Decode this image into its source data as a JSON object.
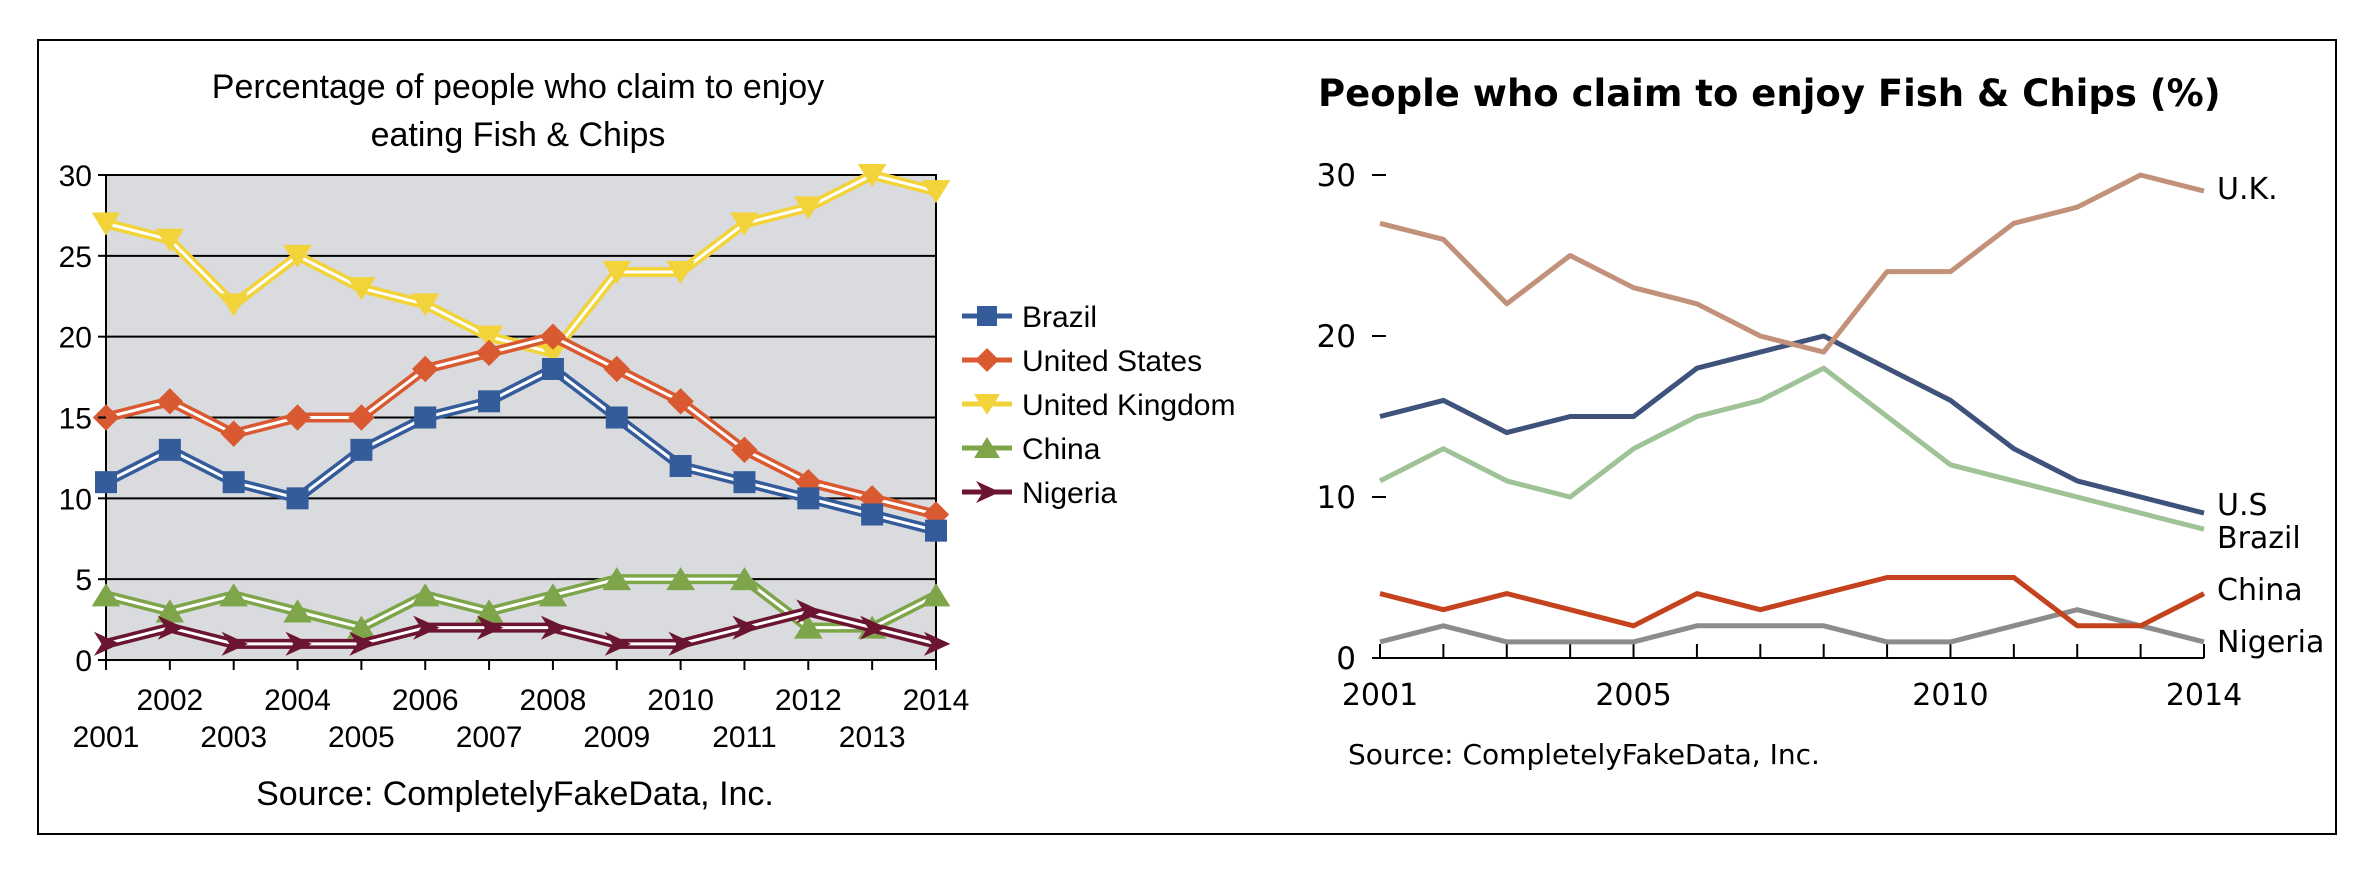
{
  "chart_data": [
    {
      "type": "line",
      "title": "Percentage of people who claim to enjoy eating Fish & Chips",
      "title_lines": [
        "Percentage of people who claim to enjoy",
        "eating Fish & Chips"
      ],
      "source": "Source: CompletelyFakeData, Inc.",
      "x": [
        "2001",
        "2002",
        "2003",
        "2004",
        "2005",
        "2006",
        "2007",
        "2008",
        "2009",
        "2010",
        "2011",
        "2012",
        "2013",
        "2014"
      ],
      "ylim": [
        0,
        30
      ],
      "yticks": [
        "0",
        "5",
        "10",
        "15",
        "20",
        "25",
        "30"
      ],
      "grid": true,
      "legend_position": "right",
      "background": "#d9dbdf",
      "series": [
        {
          "name": "Brazil",
          "color": "#345b9a",
          "marker": "square",
          "values": [
            11,
            13,
            11,
            10,
            13,
            15,
            16,
            18,
            15,
            12,
            11,
            10,
            9,
            8
          ]
        },
        {
          "name": "United States",
          "color": "#d95a31",
          "marker": "diamond",
          "values": [
            15,
            16,
            14,
            15,
            15,
            18,
            19,
            20,
            18,
            16,
            13,
            11,
            10,
            9
          ]
        },
        {
          "name": "United Kingdom",
          "color": "#f2d33a",
          "marker": "triangle-down",
          "values": [
            27,
            26,
            22,
            25,
            23,
            22,
            20,
            19,
            24,
            24,
            27,
            28,
            30,
            29
          ]
        },
        {
          "name": "China",
          "color": "#7ea54a",
          "marker": "triangle-up",
          "values": [
            4,
            3,
            4,
            3,
            2,
            4,
            3,
            4,
            5,
            5,
            5,
            2,
            2,
            4
          ]
        },
        {
          "name": "Nigeria",
          "color": "#6b1530",
          "marker": "arrow-right",
          "values": [
            1,
            2,
            1,
            1,
            1,
            2,
            2,
            2,
            1,
            1,
            2,
            3,
            2,
            1
          ]
        }
      ]
    },
    {
      "type": "line",
      "title": "People who claim to enjoy Fish & Chips (%)",
      "source": "Source: CompletelyFakeData, Inc.",
      "x": [
        "2001",
        "2002",
        "2003",
        "2004",
        "2005",
        "2006",
        "2007",
        "2008",
        "2009",
        "2010",
        "2011",
        "2012",
        "2013",
        "2014"
      ],
      "xtick_labels": [
        "2001",
        "2005",
        "2010",
        "2014"
      ],
      "ylim": [
        0,
        30
      ],
      "yticks": [
        "0",
        "10",
        "20",
        "30"
      ],
      "grid": false,
      "legend_position": "direct labels at line ends",
      "series": [
        {
          "name": "U.K.",
          "color": "#c2917a",
          "values": [
            27,
            26,
            22,
            25,
            23,
            22,
            20,
            19,
            24,
            24,
            27,
            28,
            30,
            29
          ]
        },
        {
          "name": "U.S",
          "color": "#3e527c",
          "values": [
            15,
            16,
            14,
            15,
            15,
            18,
            19,
            20,
            18,
            16,
            13,
            11,
            10,
            9
          ]
        },
        {
          "name": "Brazil",
          "color": "#9fc297",
          "values": [
            11,
            13,
            11,
            10,
            13,
            15,
            16,
            18,
            15,
            12,
            11,
            10,
            9,
            8
          ]
        },
        {
          "name": "China",
          "color": "#c4421e",
          "values": [
            4,
            3,
            4,
            3,
            2,
            4,
            3,
            4,
            5,
            5,
            5,
            2,
            2,
            4
          ]
        },
        {
          "name": "Nigeria",
          "color": "#8c8c8c",
          "values": [
            1,
            2,
            1,
            1,
            1,
            2,
            2,
            2,
            1,
            1,
            2,
            3,
            2,
            1
          ]
        }
      ]
    }
  ]
}
